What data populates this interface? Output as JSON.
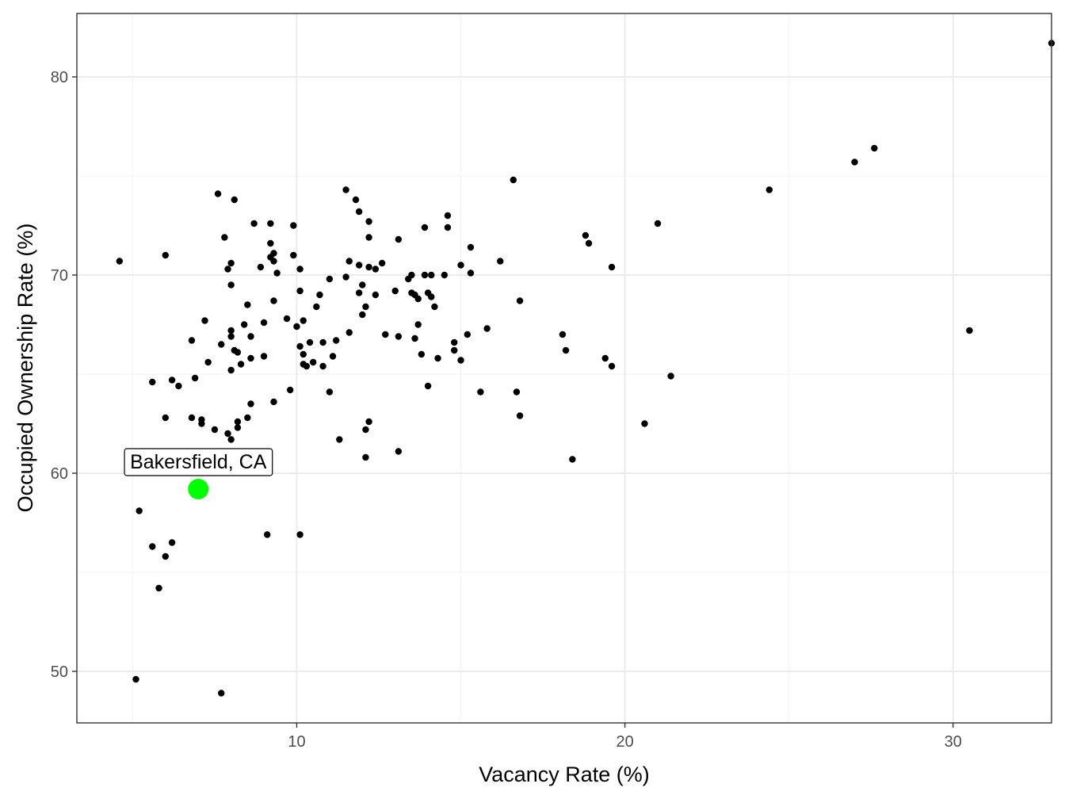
{
  "chart_data": {
    "type": "scatter",
    "title": "",
    "xlabel": "Vacancy Rate (%)",
    "ylabel": "Occupied Ownership Rate (%)",
    "xlim": [
      3.3,
      33.0
    ],
    "ylim": [
      47.4,
      83.2
    ],
    "x_ticks": [
      10,
      20,
      30
    ],
    "y_ticks": [
      50,
      60,
      70,
      80
    ],
    "x_tick_labels": [
      "10",
      "20",
      "30"
    ],
    "y_tick_labels": [
      "50",
      "60",
      "70",
      "80"
    ],
    "grid": true,
    "colors": {
      "point": "#000000",
      "highlight": "#00ff00",
      "grid_major": "#ebebeb",
      "grid_minor": "#f3f3f3",
      "panel_border": "#333333"
    },
    "series": [
      {
        "points": [
          [
            4.6,
            70.7
          ],
          [
            5.1,
            49.6
          ],
          [
            5.2,
            58.1
          ],
          [
            5.6,
            64.6
          ],
          [
            5.6,
            56.3
          ],
          [
            5.8,
            54.2
          ],
          [
            6.0,
            71.0
          ],
          [
            6.0,
            62.8
          ],
          [
            6.0,
            55.8
          ],
          [
            6.2,
            64.7
          ],
          [
            6.2,
            56.5
          ],
          [
            6.4,
            64.4
          ],
          [
            6.8,
            66.7
          ],
          [
            6.8,
            62.8
          ],
          [
            6.9,
            64.8
          ],
          [
            7.1,
            62.7
          ],
          [
            7.1,
            62.5
          ],
          [
            7.2,
            67.7
          ],
          [
            7.3,
            65.6
          ],
          [
            7.5,
            62.2
          ],
          [
            7.6,
            74.1
          ],
          [
            7.7,
            66.5
          ],
          [
            7.7,
            48.9
          ],
          [
            7.8,
            71.9
          ],
          [
            7.9,
            62.0
          ],
          [
            7.9,
            70.3
          ],
          [
            8.0,
            70.6
          ],
          [
            8.0,
            69.5
          ],
          [
            8.0,
            67.2
          ],
          [
            8.0,
            66.9
          ],
          [
            8.0,
            65.2
          ],
          [
            8.0,
            61.7
          ],
          [
            8.1,
            73.8
          ],
          [
            8.1,
            66.2
          ],
          [
            8.2,
            62.6
          ],
          [
            8.2,
            62.3
          ],
          [
            8.2,
            66.1
          ],
          [
            8.3,
            65.5
          ],
          [
            8.4,
            67.5
          ],
          [
            8.5,
            68.5
          ],
          [
            8.5,
            62.8
          ],
          [
            8.6,
            66.9
          ],
          [
            8.6,
            65.8
          ],
          [
            8.6,
            63.5
          ],
          [
            8.7,
            72.6
          ],
          [
            8.9,
            70.4
          ],
          [
            9.0,
            67.6
          ],
          [
            9.0,
            65.9
          ],
          [
            9.1,
            56.9
          ],
          [
            9.2,
            72.6
          ],
          [
            9.2,
            71.6
          ],
          [
            9.2,
            70.9
          ],
          [
            9.3,
            71.1
          ],
          [
            9.3,
            70.7
          ],
          [
            9.3,
            68.7
          ],
          [
            9.3,
            63.6
          ],
          [
            9.4,
            70.1
          ],
          [
            9.7,
            67.8
          ],
          [
            9.8,
            64.2
          ],
          [
            9.9,
            72.5
          ],
          [
            9.9,
            71.0
          ],
          [
            10.0,
            67.4
          ],
          [
            10.1,
            70.3
          ],
          [
            10.1,
            69.2
          ],
          [
            10.1,
            66.4
          ],
          [
            10.1,
            56.9
          ],
          [
            10.2,
            67.7
          ],
          [
            10.2,
            66.0
          ],
          [
            10.2,
            65.5
          ],
          [
            10.3,
            65.4
          ],
          [
            10.4,
            66.6
          ],
          [
            10.5,
            65.6
          ],
          [
            10.6,
            68.4
          ],
          [
            10.7,
            69.0
          ],
          [
            10.8,
            66.6
          ],
          [
            10.8,
            65.4
          ],
          [
            11.0,
            69.8
          ],
          [
            11.0,
            64.1
          ],
          [
            11.1,
            65.9
          ],
          [
            11.2,
            66.7
          ],
          [
            11.3,
            61.7
          ],
          [
            11.5,
            74.3
          ],
          [
            11.5,
            69.9
          ],
          [
            11.6,
            70.7
          ],
          [
            11.6,
            67.1
          ],
          [
            11.8,
            73.8
          ],
          [
            11.9,
            73.2
          ],
          [
            11.9,
            70.5
          ],
          [
            11.9,
            69.1
          ],
          [
            12.0,
            69.5
          ],
          [
            12.0,
            68.0
          ],
          [
            12.1,
            68.4
          ],
          [
            12.1,
            62.2
          ],
          [
            12.1,
            60.8
          ],
          [
            12.2,
            72.7
          ],
          [
            12.2,
            71.9
          ],
          [
            12.2,
            70.4
          ],
          [
            12.2,
            62.6
          ],
          [
            12.4,
            70.3
          ],
          [
            12.4,
            69.0
          ],
          [
            12.6,
            70.6
          ],
          [
            12.7,
            67.0
          ],
          [
            13.0,
            69.2
          ],
          [
            13.1,
            71.8
          ],
          [
            13.1,
            66.9
          ],
          [
            13.1,
            61.1
          ],
          [
            13.4,
            69.8
          ],
          [
            13.5,
            70.0
          ],
          [
            13.5,
            69.1
          ],
          [
            13.6,
            69.0
          ],
          [
            13.6,
            66.8
          ],
          [
            13.7,
            68.8
          ],
          [
            13.7,
            67.5
          ],
          [
            13.8,
            66.0
          ],
          [
            13.9,
            72.4
          ],
          [
            13.9,
            70.0
          ],
          [
            14.0,
            69.1
          ],
          [
            14.0,
            64.4
          ],
          [
            14.1,
            70.0
          ],
          [
            14.1,
            68.9
          ],
          [
            14.2,
            68.4
          ],
          [
            14.3,
            65.8
          ],
          [
            14.5,
            70.0
          ],
          [
            14.6,
            73.0
          ],
          [
            14.6,
            72.4
          ],
          [
            14.8,
            66.2
          ],
          [
            14.8,
            66.6
          ],
          [
            15.0,
            70.5
          ],
          [
            15.0,
            65.7
          ],
          [
            15.2,
            67.0
          ],
          [
            15.3,
            71.4
          ],
          [
            15.3,
            70.1
          ],
          [
            15.6,
            64.1
          ],
          [
            15.8,
            67.3
          ],
          [
            16.2,
            70.7
          ],
          [
            16.6,
            74.8
          ],
          [
            16.7,
            64.1
          ],
          [
            16.8,
            62.9
          ],
          [
            16.8,
            68.7
          ],
          [
            18.1,
            67.0
          ],
          [
            18.2,
            66.2
          ],
          [
            18.4,
            60.7
          ],
          [
            18.8,
            72.0
          ],
          [
            18.9,
            71.6
          ],
          [
            19.4,
            65.8
          ],
          [
            19.6,
            70.4
          ],
          [
            19.6,
            65.4
          ],
          [
            20.6,
            62.5
          ],
          [
            21.0,
            72.6
          ],
          [
            21.4,
            64.9
          ],
          [
            24.4,
            74.3
          ],
          [
            27.0,
            75.7
          ],
          [
            27.6,
            76.4
          ],
          [
            30.5,
            67.2
          ],
          [
            33.0,
            81.7
          ]
        ]
      }
    ],
    "annotations": [
      {
        "label": "Bakersfield, CA",
        "x": 7.0,
        "y": 59.2,
        "color": "#00ff00"
      }
    ]
  }
}
